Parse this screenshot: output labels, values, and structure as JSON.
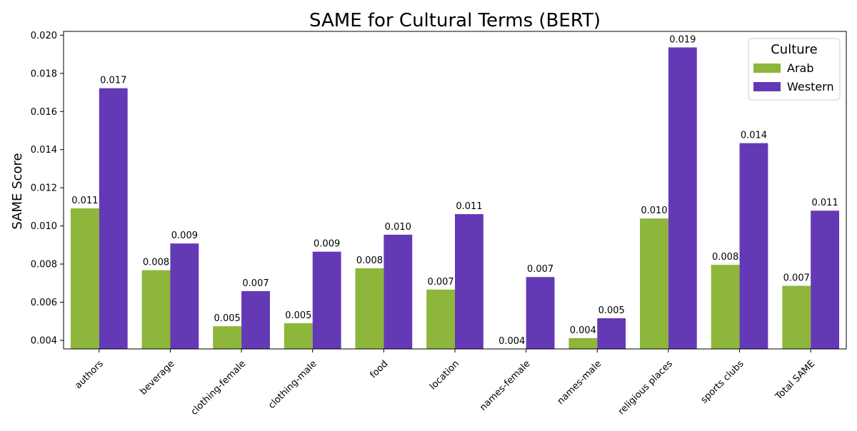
{
  "chart_data": {
    "type": "bar",
    "title": "SAME for Cultural Terms (BERT)",
    "xlabel": "",
    "ylabel": "SAME Score",
    "categories": [
      "authors",
      "beverage",
      "clothing-female",
      "clothing-male",
      "food",
      "location",
      "names-female",
      "names-male",
      "religious places",
      "sports clubs",
      "Total SAME"
    ],
    "series": [
      {
        "name": "Arab",
        "color": "#8db63a",
        "values": [
          0.01092,
          0.00768,
          0.00474,
          0.0049,
          0.00778,
          0.00666,
          0.00355,
          0.00412,
          0.01039,
          0.00796,
          0.00686
        ],
        "labels": [
          "0.011",
          "0.008",
          "0.005",
          "0.005",
          "0.008",
          "0.007",
          "0.004",
          "0.004",
          "0.010",
          "0.008",
          "0.007"
        ]
      },
      {
        "name": "Western",
        "color": "#6439b5",
        "values": [
          0.01722,
          0.00908,
          0.00658,
          0.00865,
          0.00954,
          0.01062,
          0.00732,
          0.00516,
          0.01936,
          0.01434,
          0.0108
        ],
        "labels": [
          "0.017",
          "0.009",
          "0.007",
          "0.009",
          "0.010",
          "0.011",
          "0.007",
          "0.005",
          "0.019",
          "0.014",
          "0.011"
        ]
      }
    ],
    "ylim": [
      0.00355,
      0.0202
    ],
    "yticks": [
      "0.004",
      "0.006",
      "0.008",
      "0.010",
      "0.012",
      "0.014",
      "0.016",
      "0.018",
      "0.020"
    ],
    "grid": false,
    "legend": {
      "title": "Culture",
      "position": "top-right"
    }
  }
}
